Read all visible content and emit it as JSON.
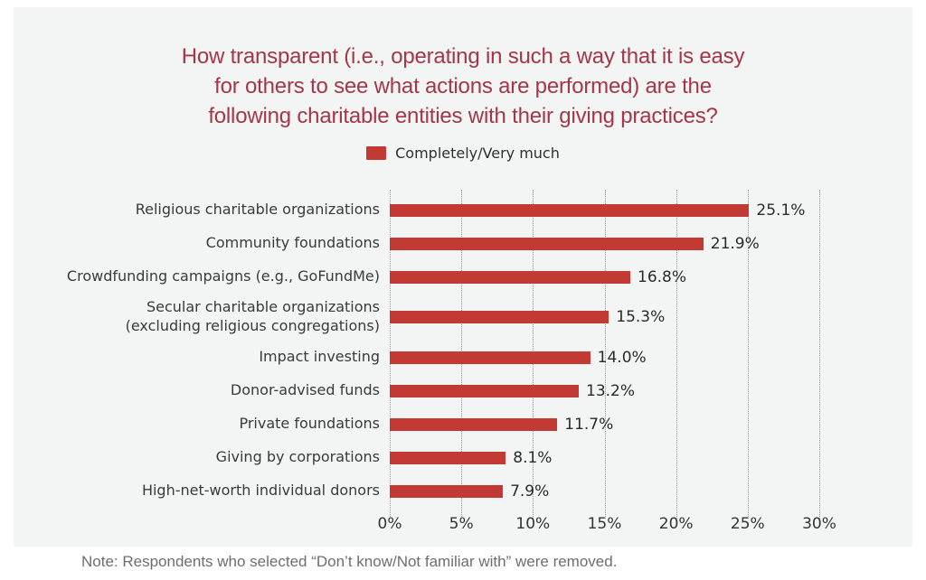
{
  "theme": {
    "bar_color": "#c23a33",
    "title_color": "#a53648",
    "card_background": "#f3f4f4",
    "page_background": "#ffffff",
    "label_color": "#3a3a3a",
    "note_color": "#6e6e6e",
    "grid_color": "#9b9b9b"
  },
  "header": {
    "title_lines": [
      "How transparent (i.e., operating in such a way that it is easy",
      "for others to see what actions are performed) are the",
      "following charitable entities with their giving practices?"
    ]
  },
  "legend": {
    "label": "Completely/Very much",
    "swatch_color": "#c23a33",
    "position": "top-center"
  },
  "chart_data": {
    "type": "bar",
    "orientation": "horizontal",
    "title": "How transparent (i.e., operating in such a way that it is easy for others to see what actions are performed) are the following charitable entities with their giving practices?",
    "legend_entries": [
      "Completely/Very much"
    ],
    "categories": [
      "Religious charitable organizations",
      "Community foundations",
      "Crowdfunding campaigns (e.g., GoFundMe)",
      "Secular charitable organizations\n(excluding religious congregations)",
      "Impact investing",
      "Donor-advised funds",
      "Private foundations",
      "Giving by corporations",
      "High-net-worth individual donors"
    ],
    "values": [
      25.1,
      21.9,
      16.8,
      15.3,
      14.0,
      13.2,
      11.7,
      8.1,
      7.9
    ],
    "value_labels": [
      "25.1%",
      "21.9%",
      "16.8%",
      "15.3%",
      "14.0%",
      "13.2%",
      "11.7%",
      "8.1%",
      "7.9%"
    ],
    "xlabel": "",
    "ylabel": "",
    "xlim": [
      0,
      30
    ],
    "xticks": [
      0,
      5,
      10,
      15,
      20,
      25,
      30
    ],
    "xtick_labels": [
      "0%",
      "5%",
      "10%",
      "15%",
      "20%",
      "25%",
      "30%"
    ],
    "grid": "vertical-dotted",
    "bar_color": "#c23a33"
  },
  "note": {
    "text": "Note: Respondents who selected “Don’t know/Not familiar with” were removed."
  }
}
